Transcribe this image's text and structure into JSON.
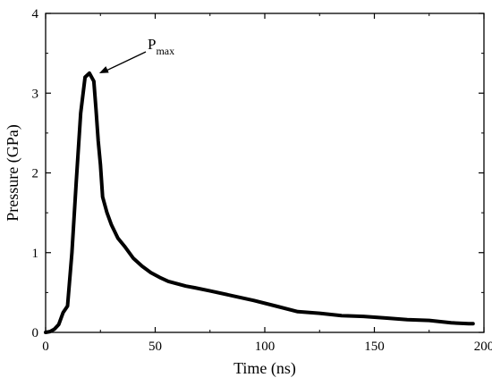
{
  "chart_data": {
    "type": "line",
    "title": "",
    "xlabel": "Time (ns)",
    "ylabel": "Pressure (GPa)",
    "xlim": [
      0,
      200
    ],
    "ylim": [
      0,
      4
    ],
    "xticks": [
      0,
      50,
      100,
      150,
      200
    ],
    "xtick_labels": [
      "0",
      "50",
      "100",
      "150",
      "200"
    ],
    "yticks": [
      0,
      1,
      2,
      3,
      4
    ],
    "ytick_labels": [
      "0",
      "1",
      "2",
      "3",
      "4"
    ],
    "grid": false,
    "legend": "none",
    "series": [
      {
        "x": [
          0,
          2,
          4,
          6,
          8,
          10,
          12,
          14,
          16,
          18,
          20,
          22,
          23,
          24,
          25,
          26,
          28,
          30,
          33,
          36,
          40,
          44,
          48,
          52,
          56,
          60,
          64,
          68,
          75,
          85,
          95,
          105,
          115,
          125,
          135,
          145,
          155,
          165,
          175,
          185,
          193,
          195
        ],
        "y": [
          0.0,
          0.01,
          0.04,
          0.1,
          0.25,
          0.33,
          1.0,
          1.9,
          2.75,
          3.2,
          3.25,
          3.15,
          2.8,
          2.4,
          2.1,
          1.7,
          1.5,
          1.35,
          1.18,
          1.08,
          0.93,
          0.83,
          0.75,
          0.69,
          0.64,
          0.61,
          0.58,
          0.56,
          0.52,
          0.46,
          0.4,
          0.33,
          0.26,
          0.24,
          0.21,
          0.2,
          0.18,
          0.16,
          0.15,
          0.12,
          0.11,
          0.11
        ],
        "color": "#000000"
      }
    ],
    "annotations": [
      {
        "text": "P",
        "subscript": "max",
        "x": 22,
        "y": 3.25
      }
    ]
  }
}
